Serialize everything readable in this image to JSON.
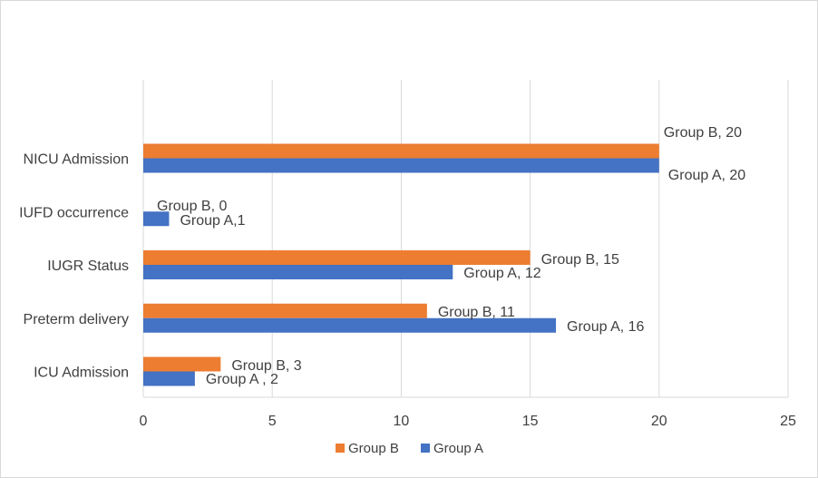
{
  "chart_data": {
    "type": "bar",
    "orientation": "horizontal",
    "title": "",
    "xlabel": "",
    "ylabel": "",
    "xlim": [
      0,
      25
    ],
    "xticks": [
      "0",
      "5",
      "10",
      "15",
      "20",
      "25"
    ],
    "grid": true,
    "legend_position": "bottom",
    "categories": [
      "NICU Admission",
      "IUFD occurrence",
      "IUGR Status",
      "Preterm delivery",
      "ICU Admission"
    ],
    "series": [
      {
        "name": "Group B",
        "color": "#ED7D31",
        "values": [
          20,
          0,
          15,
          11,
          3
        ],
        "labels": [
          "Group B, 20",
          "Group B, 0",
          "Group B, 15",
          "Group B, 11",
          "Group B, 3"
        ]
      },
      {
        "name": "Group A",
        "color": "#4472C4",
        "values": [
          20,
          1,
          12,
          16,
          2
        ],
        "labels": [
          "Group A, 20",
          "Group A,1",
          "Group A, 12",
          "Group A, 16",
          "Group A , 2"
        ]
      }
    ]
  }
}
